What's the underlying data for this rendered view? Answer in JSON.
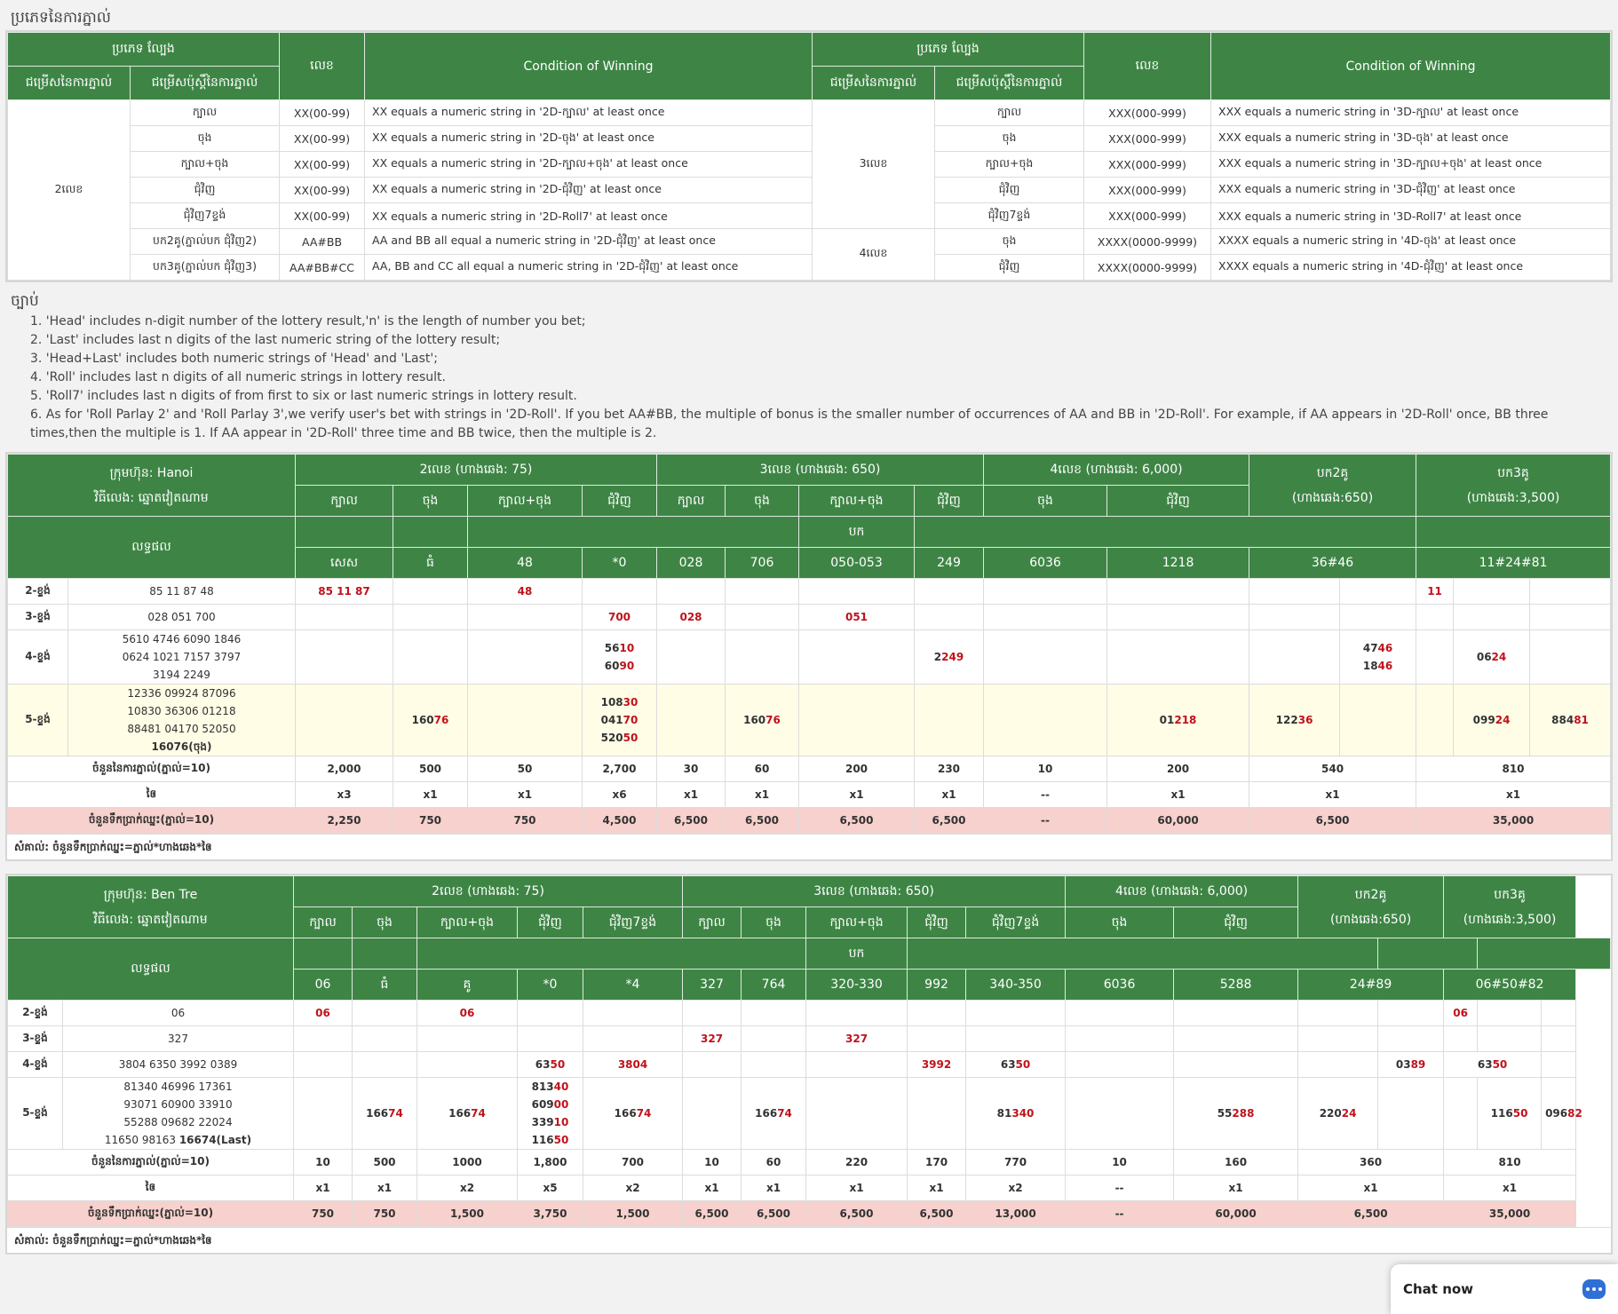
{
  "page": {
    "section_title": "ប្រភេទនៃការភ្នាល់",
    "rules_head": "ច្បាប់",
    "chat_label": "Chat now"
  },
  "rules_table": {
    "h_type": "ប្រភេទ ល្បែង",
    "h_option": "ជម្រើសនៃការភ្នាល់",
    "h_suboption": "ជម្រើសប៉ុស្តិ៍នៃការភ្នាល់",
    "h_number": "លេខ",
    "h_condition": "Condition of Winning",
    "left_group": "2លេខ",
    "left_rows": [
      {
        "opt": "ក្បាល",
        "num": "XX(00-99)",
        "cond": "XX equals a numeric string in '2D-ក្បាល' at least once"
      },
      {
        "opt": "ចុង",
        "num": "XX(00-99)",
        "cond": "XX equals a numeric string in '2D-ចុង' at least once"
      },
      {
        "opt": "ក្បាល+ចុង",
        "num": "XX(00-99)",
        "cond": "XX equals a numeric string in '2D-ក្បាល+ចុង' at least once"
      },
      {
        "opt": "ជុំវិញ",
        "num": "XX(00-99)",
        "cond": "XX equals a numeric string in '2D-ជុំវិញ' at least once"
      },
      {
        "opt": "ជុំវិញ7ខ្ទង់",
        "num": "XX(00-99)",
        "cond": "XX equals a numeric string in '2D-Roll7' at least once"
      },
      {
        "opt": "បក2គូ(ភ្នាល់បក ជុំវិញ2)",
        "num": "AA#BB",
        "cond": "AA and BB all equal a numeric string in '2D-ជុំវិញ' at least once"
      },
      {
        "opt": "បក3គូ(ភ្នាល់បក ជុំវិញ3)",
        "num": "AA#BB#CC",
        "cond": "AA, BB and CC all equal a numeric string in '2D-ជុំវិញ' at least once"
      }
    ],
    "right_group_3": "3លេខ",
    "right_group_4": "4លេខ",
    "right_rows": [
      {
        "opt": "ក្បាល",
        "num": "XXX(000-999)",
        "cond": "XXX equals a numeric string in '3D-ក្បាល' at least once"
      },
      {
        "opt": "ចុង",
        "num": "XXX(000-999)",
        "cond": "XXX equals a numeric string in '3D-ចុង' at least once"
      },
      {
        "opt": "ក្បាល+ចុង",
        "num": "XXX(000-999)",
        "cond": "XXX equals a numeric string in '3D-ក្បាល+ចុង' at least once"
      },
      {
        "opt": "ជុំវិញ",
        "num": "XXX(000-999)",
        "cond": "XXX equals a numeric string in '3D-ជុំវិញ' at least once"
      },
      {
        "opt": "ជុំវិញ7ខ្ទង់",
        "num": "XXX(000-999)",
        "cond": "XXX equals a numeric string in '3D-Roll7' at least once"
      },
      {
        "opt": "ចុង",
        "num": "XXXX(0000-9999)",
        "cond": "XXXX equals a numeric string in '4D-ចុង' at least once"
      },
      {
        "opt": "ជុំវិញ",
        "num": "XXXX(0000-9999)",
        "cond": "XXXX equals a numeric string in '4D-ជុំវិញ' at least once"
      }
    ]
  },
  "rules": [
    "1. 'Head' includes n-digit number of the lottery result,'n' is the length of number you bet;",
    "2. 'Last' includes last n digits of the last numeric string of the lottery result;",
    "3. 'Head+Last' includes both numeric strings of 'Head' and 'Last';",
    "4. 'Roll' includes last n digits of all numeric strings in lottery result.",
    "5. 'Roll7' includes last n digits of from first to six or last numeric strings in lottery result.",
    "6. As for 'Roll Parlay 2' and 'Roll Parlay 3',we verify user's bet with strings in '2D-Roll'. If you bet AA#BB, the multiple of bonus is the smaller number of occurrences of AA and BB in '2D-Roll'. For example, if AA appears in '2D-Roll' once, BB three times,then the multiple is 1. If AA appear in '2D-Roll' three time and BB twice, then the multiple is 2."
  ],
  "hanoi": {
    "company": "ក្រុមហ៊ុន: Hanoi",
    "method": "វិធីលេង: ឆ្នោតវៀតណាម",
    "result_label": "លទ្ធផល",
    "g2": "2លេខ (ហាងឆេង: 75)",
    "g3": "3លេខ (ហាងឆេង: 650)",
    "g4": "4លេខ (ហាងឆេង: 6,000)",
    "gp2a": "បក2គូ",
    "gp2b": "(ហាងឆេង:650)",
    "gp3a": "បក3គូ",
    "gp3b": "(ហាងឆេង:3,500)",
    "sub": [
      "ក្បាល",
      "ចុង",
      "ក្បាល+ចុង",
      "ជុំវិញ",
      "ក្បាល",
      "ចុង",
      "ក្បាល+ចុង",
      "ជុំវិញ",
      "ចុង",
      "ជុំវិញ"
    ],
    "bak": "បក",
    "bets": [
      "សេស",
      "ធំ",
      "48",
      "*0",
      "028",
      "706",
      "050-053",
      "249",
      "6036",
      "1218",
      "36#46",
      "11#24#81"
    ],
    "l2": "2-ខ្ទង់",
    "l2n": "85 11 87 48",
    "l2a": "85 11 87",
    "l2b": "48",
    "l2c": "11",
    "l3": "3-ខ្ទង់",
    "l3n": "028 051 700",
    "l3a": "700",
    "l3b": "028",
    "l3c": "051",
    "l4": "4-ខ្ទង់",
    "l4n1": "5610 4746 6090 1846",
    "l4n2": "0624 1021 7157 3797",
    "l4n3": "3194 2249",
    "l4r1a": "56",
    "l4r1b": "10",
    "l4r2a": "60",
    "l4r2b": "90",
    "l4c1a": "2",
    "l4c1b": "249",
    "l4d1a": "47",
    "l4d1b": "46",
    "l4d2a": "18",
    "l4d2b": "46",
    "l4e1a": "06",
    "l4e1b": "24",
    "l5": "5-ខ្ទង់",
    "l5n1": "12336 09924 87096",
    "l5n2": "10830 36306 01218",
    "l5n3": "88481 04170 52050",
    "l5n4": "16076(ចុង)",
    "l5a1": "160",
    "l5a2": "76",
    "l5r1a": "108",
    "l5r1b": "30",
    "l5r2a": "041",
    "l5r2b": "70",
    "l5r3a": "520",
    "l5r3b": "50",
    "l5b1": "160",
    "l5b2": "76",
    "l5c1": "01",
    "l5c2": "218",
    "l5d1": "122",
    "l5d2": "36",
    "l5e1": "099",
    "l5e2": "24",
    "l5f1": "884",
    "l5f2": "81",
    "count_label": "ចំនួននៃការភ្នាល់(ភ្នាល់=10)",
    "counts": [
      "2,000",
      "500",
      "50",
      "2,700",
      "30",
      "60",
      "200",
      "230",
      "10",
      "200",
      "540",
      "810"
    ],
    "mult_label": "ឲៃ",
    "mults": [
      "x3",
      "x1",
      "x1",
      "x6",
      "x1",
      "x1",
      "x1",
      "x1",
      "--",
      "x1",
      "x1",
      "x1"
    ],
    "win_label": "ចំនួនទឹកប្រាក់ឈ្នះ(ភ្នាល់=10)",
    "wins": [
      "2,250",
      "750",
      "750",
      "4,500",
      "6,500",
      "6,500",
      "6,500",
      "6,500",
      "--",
      "60,000",
      "6,500",
      "35,000"
    ],
    "note": "សំគាល់: ចំនួនទឹកប្រាក់ឈ្នះ=ភ្នាល់*ហាងឆេង*ឲៃ"
  },
  "bentre": {
    "company": "ក្រុមហ៊ុន: Ben Tre",
    "method": "វិធីលេង: ឆ្នោតវៀតណាម",
    "result_label": "លទ្ធផល",
    "g2": "2លេខ (ហាងឆេង: 75)",
    "g3": "3លេខ (ហាងឆេង: 650)",
    "g4": "4លេខ (ហាងឆេង: 6,000)",
    "gp2a": "បក2គូ",
    "gp2b": "(ហាងឆេង:650)",
    "gp3a": "បក3គូ",
    "gp3b": "(ហាងឆេង:3,500)",
    "sub": [
      "ក្បាល",
      "ចុង",
      "ក្បាល+ចុង",
      "ជុំវិញ",
      "ជុំវិញ7ខ្ទង់",
      "ក្បាល",
      "ចុង",
      "ក្បាល+ចុង",
      "ជុំវិញ",
      "ជុំវិញ7ខ្ទង់",
      "ចុង",
      "ជុំវិញ"
    ],
    "bak": "បក",
    "bets": [
      "06",
      "ធំ",
      "គូ",
      "*0",
      "*4",
      "327",
      "764",
      "320-330",
      "992",
      "340-350",
      "6036",
      "5288",
      "24#89",
      "06#50#82"
    ],
    "l2": "2-ខ្ទង់",
    "l2n": "06",
    "l2a": "06",
    "l2b": "06",
    "l2c": "06",
    "l3": "3-ខ្ទង់",
    "l3n": "327",
    "l3a": "327",
    "l3b": "327",
    "l4": "4-ខ្ទង់",
    "l4n": "3804 6350 3992 0389",
    "l4a1": "63",
    "l4a2": "50",
    "l4b": "3804",
    "l4c": "3992",
    "l4d1": "63",
    "l4d2": "50",
    "l4e1": "03",
    "l4e2": "89",
    "l4f1": "63",
    "l4f2": "50",
    "l5": "5-ខ្ទង់",
    "l5n1": "81340 46996 17361",
    "l5n2": "93071 60900 33910",
    "l5n3": "55288 09682 22024",
    "l5n4a": "11650 98163 ",
    "l5n4b": "16674(Last)",
    "l5a1": "166",
    "l5a2": "74",
    "l5b1": "166",
    "l5b2": "74",
    "l5r1a": "813",
    "l5r1b": "40",
    "l5r2a": "609",
    "l5r2b": "00",
    "l5r3a": "339",
    "l5r3b": "10",
    "l5r4a": "116",
    "l5r4b": "50",
    "l5c1": "166",
    "l5c2": "74",
    "l5d1": "166",
    "l5d2": "74",
    "l5e1": "81",
    "l5e2": "340",
    "l5f1": "55",
    "l5f2": "288",
    "l5g1": "220",
    "l5g2": "24",
    "l5h1": "116",
    "l5h2": "50",
    "l5i1": "096",
    "l5i2": "82",
    "count_label": "ចំនួននៃការភ្នាល់(ភ្នាល់=10)",
    "counts": [
      "10",
      "500",
      "1000",
      "1,800",
      "700",
      "10",
      "60",
      "220",
      "170",
      "770",
      "10",
      "160",
      "360",
      "810"
    ],
    "mult_label": "ឲៃ",
    "mults": [
      "x1",
      "x1",
      "x2",
      "x5",
      "x2",
      "x1",
      "x1",
      "x1",
      "x1",
      "x2",
      "--",
      "x1",
      "x1",
      "x1"
    ],
    "win_label": "ចំនួនទឹកប្រាក់ឈ្នះ(ភ្នាល់=10)",
    "wins": [
      "750",
      "750",
      "1,500",
      "3,750",
      "1,500",
      "6,500",
      "6,500",
      "6,500",
      "6,500",
      "13,000",
      "--",
      "60,000",
      "6,500",
      "35,000"
    ],
    "note": "សំគាល់: ចំនួនទឹកប្រាក់ឈ្នះ=ភ្នាល់*ហាងឆេង*ឲៃ"
  }
}
